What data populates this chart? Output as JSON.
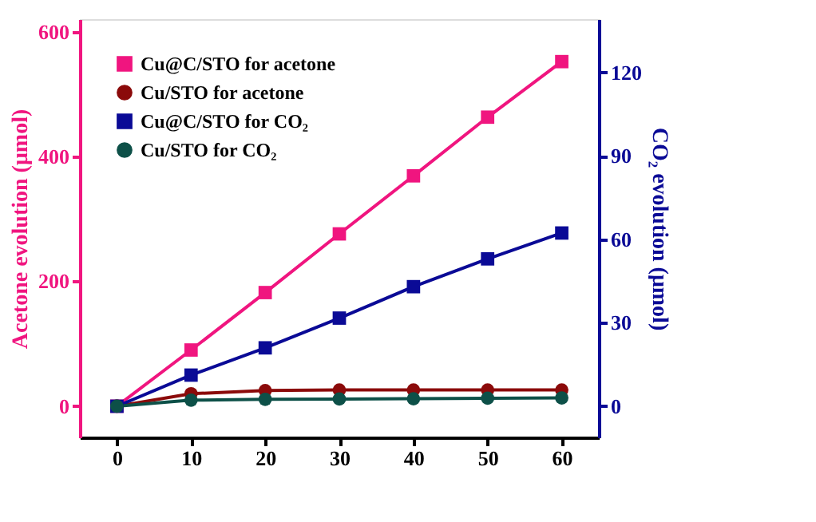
{
  "chart_data": {
    "type": "line",
    "xlabel": null,
    "ylabel": "Acetone evolution (μmol)",
    "y2label": "CO₂ evolution (μmol)",
    "x": [
      0,
      10,
      20,
      30,
      40,
      50,
      60
    ],
    "xlim": [
      -5,
      65
    ],
    "xticks": [
      0,
      10,
      20,
      30,
      40,
      50,
      60
    ],
    "ylim": [
      -50,
      620
    ],
    "yticks": [
      0,
      200,
      400,
      600
    ],
    "y2lim": [
      -11.2,
      139.2
    ],
    "y2ticks": [
      0,
      30,
      60,
      90,
      120
    ],
    "legend": "top left",
    "grid": false,
    "series": [
      {
        "name": "Cu@C/STO for acetone",
        "color": "#f0157f",
        "marker": "square",
        "axis": "y",
        "values": [
          0,
          90,
          182,
          276,
          369,
          463,
          552
        ]
      },
      {
        "name": "Cu/STO for acetone",
        "color": "#8b0a0a",
        "marker": "circle",
        "axis": "y",
        "values": [
          0,
          20,
          25,
          26,
          26,
          26,
          26
        ]
      },
      {
        "name": "Cu@C/STO for CO₂",
        "color": "#0a0a96",
        "marker": "square",
        "axis": "y2",
        "values": [
          0,
          11.2,
          21,
          31.7,
          43,
          53,
          62.3
        ]
      },
      {
        "name": "Cu/STO for CO₂",
        "color": "#0d5048",
        "marker": "circle",
        "axis": "y2",
        "values": [
          0,
          2.2,
          2.5,
          2.6,
          2.7,
          2.9,
          3.0
        ]
      }
    ]
  }
}
